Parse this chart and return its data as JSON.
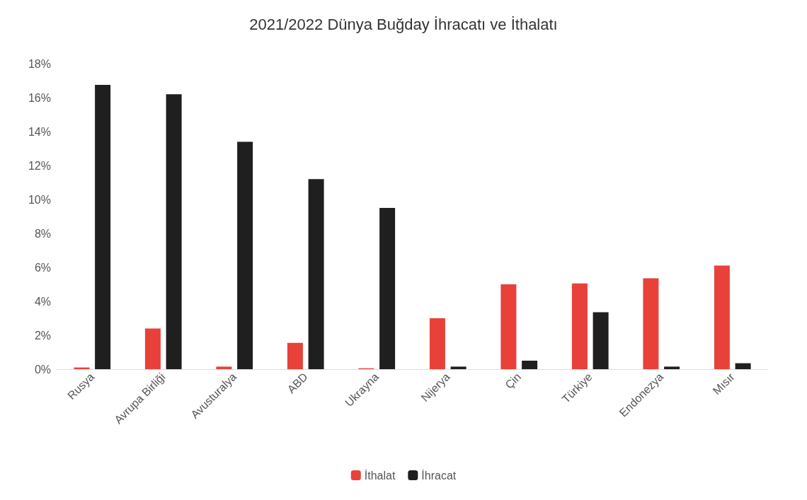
{
  "chart_data": {
    "type": "bar",
    "title": "2021/2022 Dünya Buğday İhracatı ve İthalatı",
    "categories": [
      "Rusya",
      "Avrupa Birliği",
      "Avusturalya",
      "ABD",
      "Ukrayna",
      "Nijerya",
      "Çin",
      "Türkiye",
      "Endonezya",
      "Mısır"
    ],
    "series": [
      {
        "name": "İthalat",
        "color": "#e8413a",
        "values": [
          0.1,
          2.4,
          0.15,
          1.55,
          0.05,
          3.0,
          5.0,
          5.05,
          5.35,
          6.1
        ]
      },
      {
        "name": "İhracat",
        "color": "#1f1f1f",
        "values": [
          16.75,
          16.2,
          13.4,
          11.2,
          9.5,
          0.15,
          0.5,
          3.35,
          0.15,
          0.35
        ]
      }
    ],
    "ylim": [
      0,
      18
    ],
    "yticks": [
      {
        "value": 0,
        "label": "0%"
      },
      {
        "value": 2,
        "label": "2%"
      },
      {
        "value": 4,
        "label": "4%"
      },
      {
        "value": 6,
        "label": "6%"
      },
      {
        "value": 8,
        "label": "8%"
      },
      {
        "value": 10,
        "label": "10%"
      },
      {
        "value": 12,
        "label": "12%"
      },
      {
        "value": 14,
        "label": "14%"
      },
      {
        "value": 16,
        "label": "16%"
      },
      {
        "value": 18,
        "label": "18%"
      }
    ],
    "grid": false,
    "legend": "bottom"
  }
}
